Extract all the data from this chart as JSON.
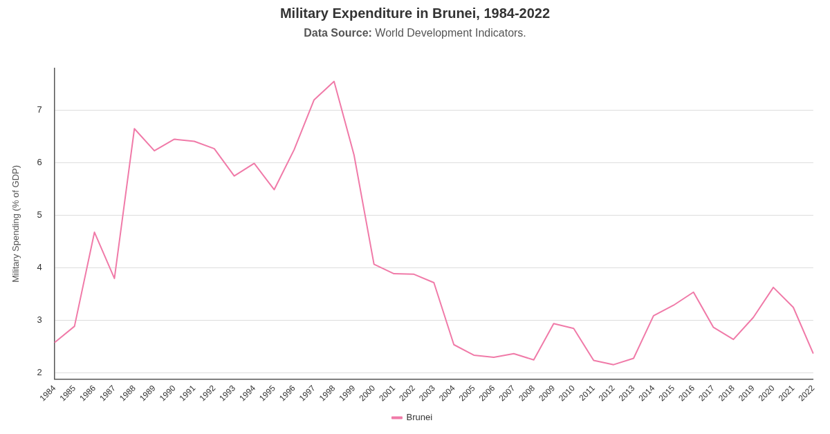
{
  "chart_data": {
    "type": "line",
    "title": "Military Expenditure in Brunei, 1984-2022",
    "subtitle": "Data Source: World Development Indicators.",
    "ylabel": "Military Spending (% of GDP)",
    "categories": [
      "1984",
      "1985",
      "1986",
      "1987",
      "1988",
      "1989",
      "1990",
      "1991",
      "1992",
      "1993",
      "1994",
      "1995",
      "1996",
      "1997",
      "1998",
      "1999",
      "2000",
      "2001",
      "2002",
      "2003",
      "2004",
      "2005",
      "2006",
      "2007",
      "2008",
      "2009",
      "2010",
      "2011",
      "2012",
      "2013",
      "2014",
      "2015",
      "2016",
      "2017",
      "2018",
      "2019",
      "2020",
      "2021",
      "2022"
    ],
    "series": [
      {
        "name": "Brunei",
        "color": "#f07aa8",
        "values": [
          2.58,
          2.89,
          4.68,
          3.8,
          6.65,
          6.23,
          6.45,
          6.41,
          6.27,
          5.75,
          5.99,
          5.49,
          6.25,
          7.2,
          7.55,
          6.15,
          4.07,
          3.89,
          3.88,
          3.72,
          2.54,
          2.34,
          2.3,
          2.37,
          2.25,
          2.94,
          2.85,
          2.24,
          2.16,
          2.28,
          3.09,
          3.29,
          3.54,
          2.87,
          2.64,
          3.06,
          3.63,
          3.25,
          2.37
        ]
      }
    ],
    "ylim": [
      1.88,
      7.8
    ],
    "yticks": [
      2,
      3,
      4,
      5,
      6,
      7
    ],
    "grid": "y",
    "legend": "bottom",
    "marker": "none",
    "line_style": "solid"
  }
}
